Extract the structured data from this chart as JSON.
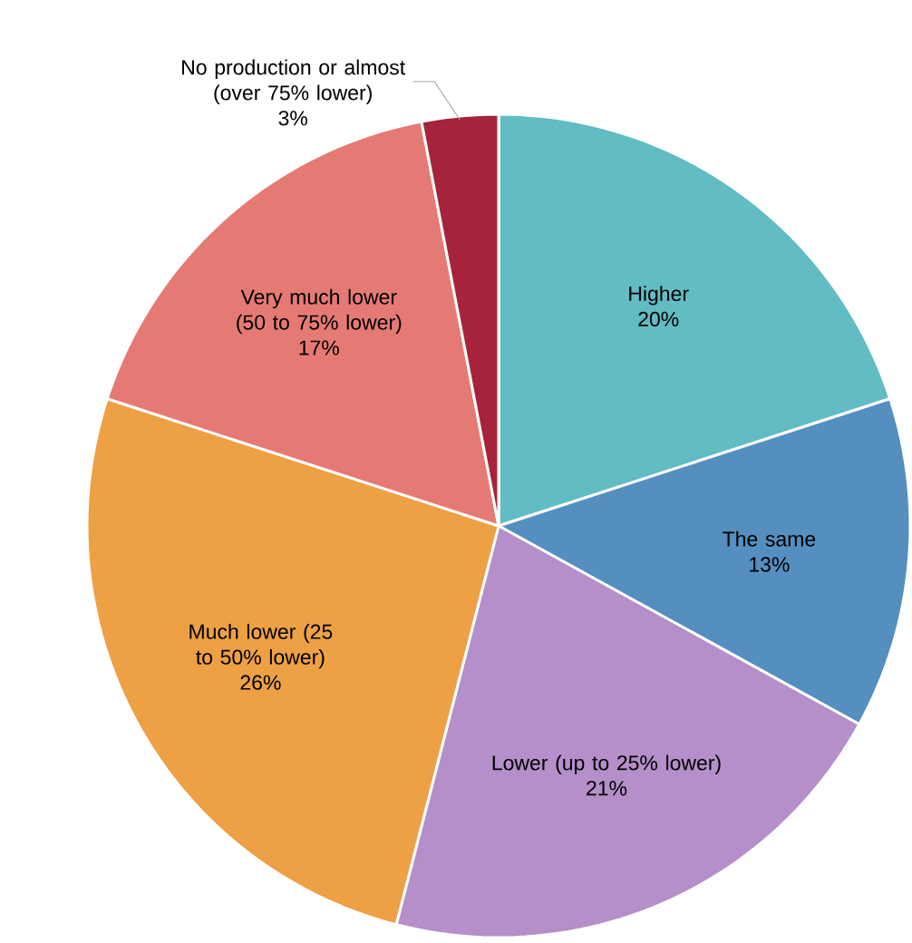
{
  "chart_data": {
    "type": "pie",
    "categories": [
      "Higher",
      "The same",
      "Lower (up to 25% lower)",
      "Much lower (25 to 50% lower)",
      "Very much lower (50 to 75% lower)",
      "No production or almost (over 75% lower)"
    ],
    "values": [
      20,
      13,
      21,
      26,
      17,
      3
    ],
    "value_labels": [
      "20%",
      "13%",
      "21%",
      "26%",
      "17%",
      "3%"
    ],
    "colors": [
      "#62bcc3",
      "#548fbf",
      "#b48fc9",
      "#eda044",
      "#e57a74",
      "#a5243b"
    ]
  }
}
